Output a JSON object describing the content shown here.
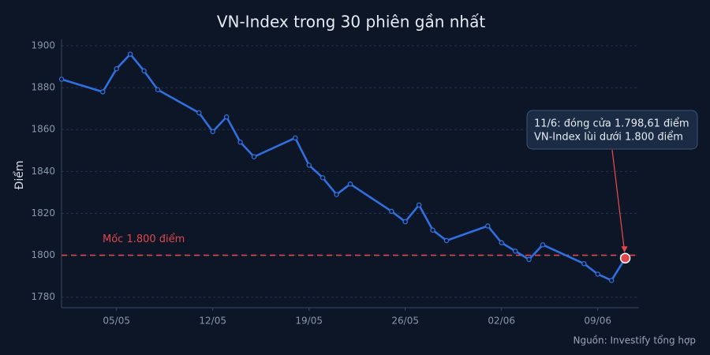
{
  "chart_data": {
    "type": "line",
    "title": "VN-Index trong 30 phiên gần nhất",
    "ylabel": "Điểm",
    "source": "Nguồn: Investify tổng hợp",
    "x": [
      "01/05",
      "04/05",
      "05/05",
      "06/05",
      "07/05",
      "08/05",
      "11/05",
      "12/05",
      "13/05",
      "14/05",
      "15/05",
      "18/05",
      "19/05",
      "20/05",
      "21/05",
      "22/05",
      "25/05",
      "26/05",
      "27/05",
      "28/05",
      "29/05",
      "01/06",
      "02/06",
      "03/06",
      "04/06",
      "05/06",
      "08/06",
      "09/06",
      "10/06",
      "11/06"
    ],
    "series": [
      {
        "name": "VN-Index",
        "color": "#2f6fe0",
        "values": [
          1884,
          1878,
          1889,
          1896,
          1888,
          1879,
          1868,
          1859,
          1866,
          1854,
          1847,
          1856,
          1843,
          1837,
          1829,
          1834,
          1821,
          1816,
          1824,
          1812,
          1807,
          1814,
          1806,
          1802,
          1798,
          1805,
          1796,
          1791,
          1788,
          1798.61
        ]
      }
    ],
    "xlim": [
      "01/05",
      "12/06"
    ],
    "xticks": [
      "05/05",
      "12/05",
      "19/05",
      "26/05",
      "02/06",
      "09/06"
    ],
    "ylim": [
      1775,
      1903
    ],
    "yticks": [
      1780,
      1800,
      1820,
      1840,
      1860,
      1880,
      1900
    ],
    "grid": true,
    "reference_line": {
      "value": 1800,
      "label": "Mốc 1.800 điểm",
      "color": "#e0474c"
    },
    "annotation": {
      "lines": [
        "11/6: đóng cửa 1.798,61 điểm",
        "VN-Index lùi dưới 1.800 điểm"
      ]
    }
  }
}
